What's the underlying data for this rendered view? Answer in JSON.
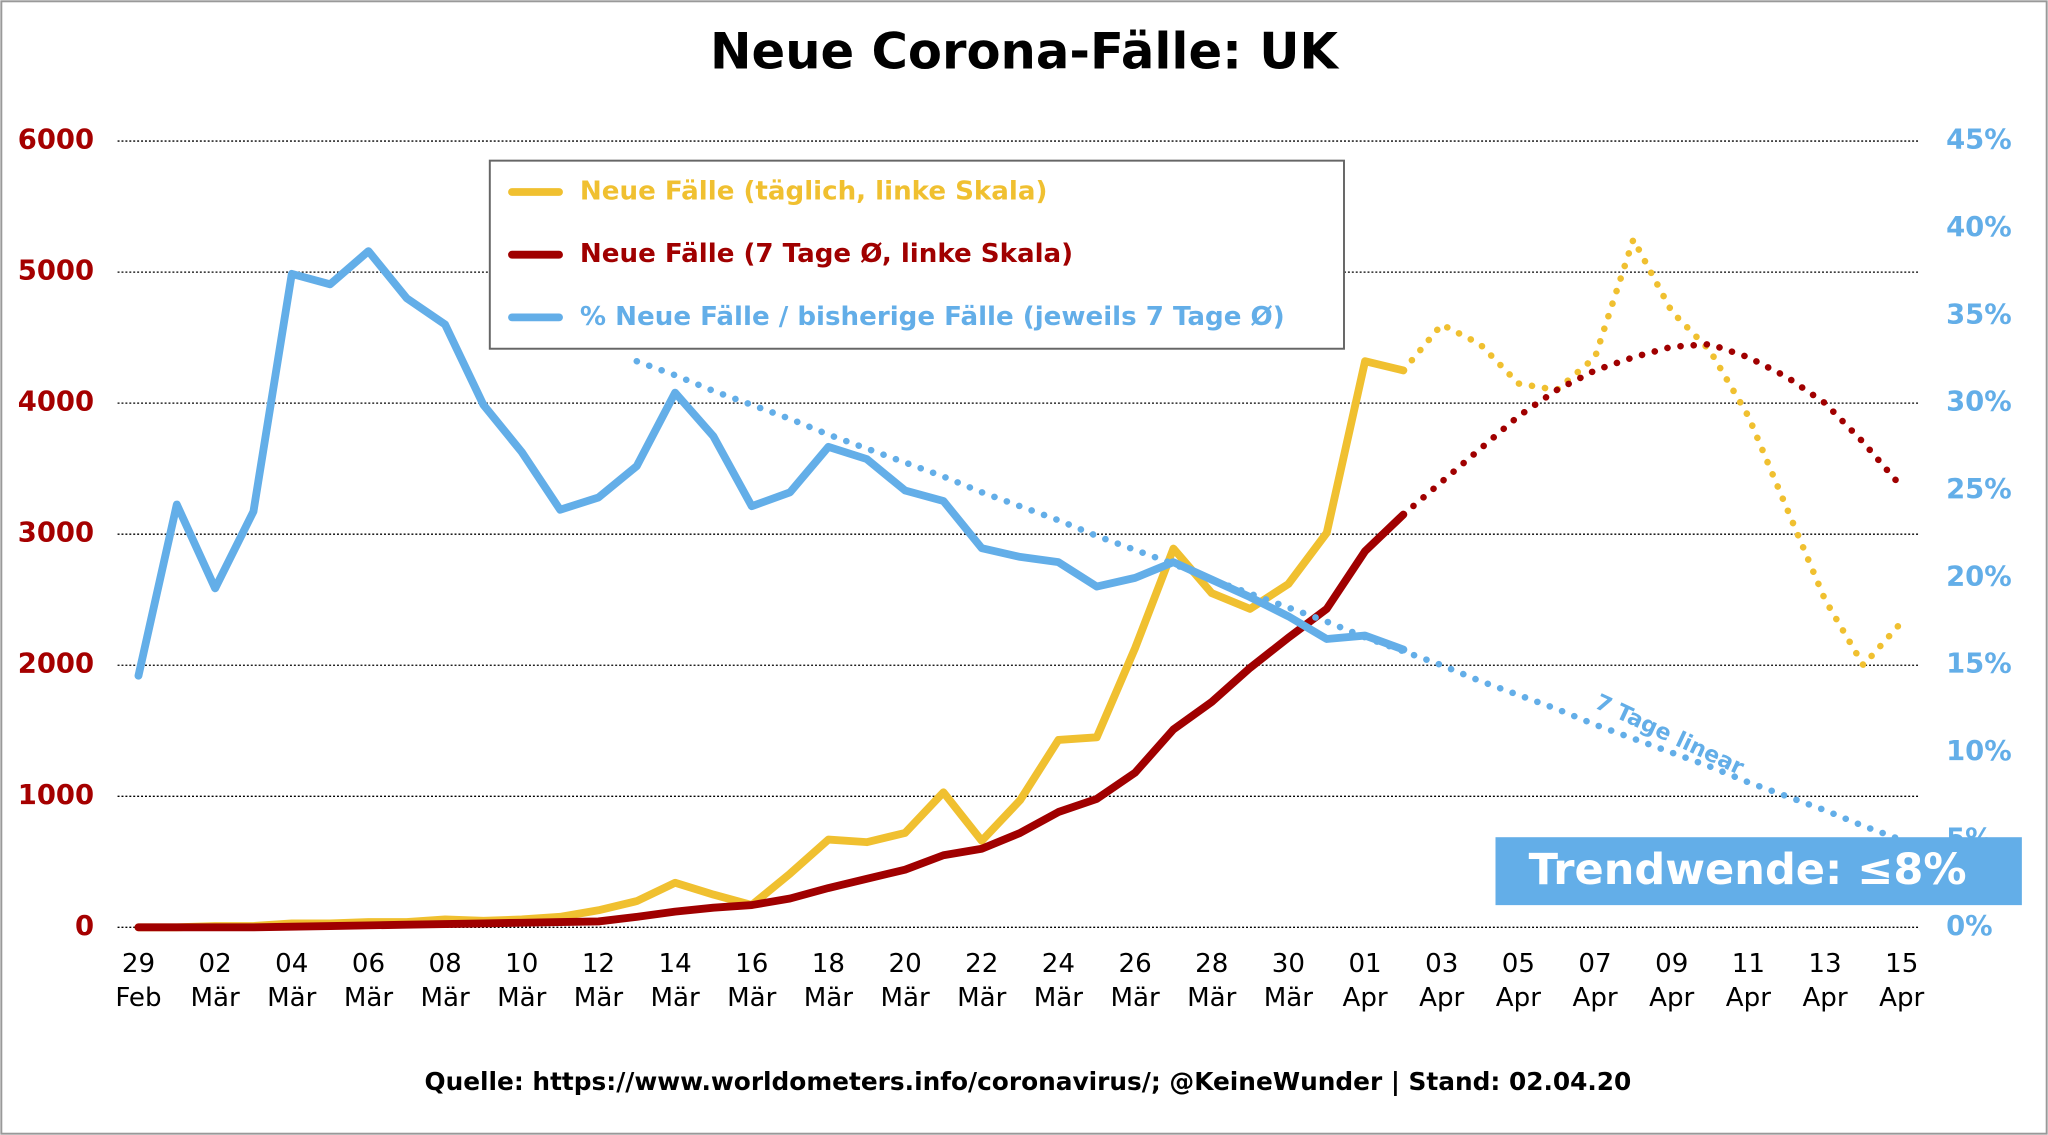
{
  "chart_data": {
    "type": "line",
    "title": "Neue Corona-Fälle: UK",
    "source": "Quelle: https://www.worldometers.info/coronavirus/; @KeineWunder    |     Stand: 02.04.20",
    "trend_label": "7 Tage linear",
    "callout": "Trendwende: ≤8%",
    "categories": [
      "29 Feb",
      null,
      "02 Mär",
      null,
      "04 Mär",
      null,
      "06 Mär",
      null,
      "08 Mär",
      null,
      "10 Mär",
      null,
      "12 Mär",
      null,
      "14 Mär",
      null,
      "16 Mär",
      null,
      "18 Mär",
      null,
      "20 Mär",
      null,
      "22 Mär",
      null,
      "24 Mär",
      null,
      "26 Mär",
      null,
      "28 Mär",
      null,
      "30 Mär",
      null,
      "01 Apr",
      null,
      "03 Apr",
      null,
      "05 Apr",
      null,
      "07 Apr",
      null,
      "09 Apr",
      null,
      "11 Apr",
      null,
      "13 Apr",
      null,
      "15 Apr"
    ],
    "ylim": [
      0,
      6000
    ],
    "yticks": [
      0,
      1000,
      2000,
      3000,
      4000,
      5000,
      6000
    ],
    "y2lim": [
      0,
      45
    ],
    "y2ticks": [
      {
        "value": 0,
        "label": "0%"
      },
      {
        "value": 5,
        "label": "5%"
      },
      {
        "value": 10,
        "label": "10%"
      },
      {
        "value": 15,
        "label": "15%"
      },
      {
        "value": 20,
        "label": "20%"
      },
      {
        "value": 25,
        "label": "25%"
      },
      {
        "value": 30,
        "label": "30%"
      },
      {
        "value": 35,
        "label": "35%"
      },
      {
        "value": 40,
        "label": "40%"
      },
      {
        "value": 45,
        "label": "45%"
      }
    ],
    "grid": true,
    "left_axis_color": "#a50000",
    "right_axis_color": "#63aee8",
    "series": [
      {
        "name": "Neue Fälle (täglich, linke Skala)",
        "color": "#f0c030",
        "values": [
          0,
          0,
          10,
          10,
          30,
          30,
          40,
          40,
          60,
          50,
          60,
          80,
          130,
          200,
          340,
          250,
          170,
          410,
          670,
          650,
          720,
          1030,
          660,
          970,
          1430,
          1450,
          2130,
          2890,
          2550,
          2430,
          2620,
          3010,
          4320,
          4250,
          null,
          null,
          null,
          null,
          null,
          null,
          null,
          null,
          null,
          null,
          null,
          null,
          null
        ],
        "forecast": [
          null,
          null,
          null,
          null,
          null,
          null,
          null,
          null,
          null,
          null,
          null,
          null,
          null,
          null,
          null,
          null,
          null,
          null,
          null,
          null,
          null,
          null,
          null,
          null,
          null,
          null,
          null,
          null,
          null,
          null,
          null,
          null,
          null,
          4250,
          4600,
          4450,
          4150,
          4100,
          4350,
          5250,
          4700,
          4400,
          3900,
          3200,
          2500,
          2000,
          2330
        ]
      },
      {
        "name": "Neue Fälle (7 Tage Ø, linke Skala)",
        "color": "#a00000",
        "values": [
          0,
          0,
          0,
          0,
          5,
          10,
          15,
          20,
          25,
          30,
          35,
          40,
          45,
          80,
          120,
          150,
          170,
          220,
          300,
          370,
          440,
          550,
          600,
          720,
          880,
          980,
          1180,
          1510,
          1720,
          1980,
          2210,
          2430,
          2870,
          3150,
          null,
          null,
          null,
          null,
          null,
          null,
          null,
          null,
          null,
          null,
          null,
          null,
          null
        ],
        "forecast": [
          null,
          null,
          null,
          null,
          null,
          null,
          null,
          null,
          null,
          null,
          null,
          null,
          null,
          null,
          null,
          null,
          null,
          null,
          null,
          null,
          null,
          null,
          null,
          null,
          null,
          null,
          null,
          null,
          null,
          null,
          null,
          null,
          null,
          3150,
          3400,
          3650,
          3900,
          4100,
          4250,
          4350,
          4430,
          4450,
          4350,
          4200,
          4000,
          3700,
          3360
        ]
      },
      {
        "name": "% Neue Fälle / bisherige Fälle (jeweils 7 Tage Ø)",
        "color": "#63aee8",
        "axis": "y2",
        "values": [
          14.4,
          24.2,
          19.4,
          23.8,
          37.4,
          36.8,
          38.7,
          36.0,
          34.5,
          29.9,
          27.2,
          23.9,
          24.6,
          26.4,
          30.6,
          28.1,
          24.1,
          24.9,
          27.5,
          26.8,
          25.0,
          24.4,
          21.7,
          21.2,
          20.9,
          19.5,
          20.0,
          20.9,
          19.9,
          18.9,
          17.8,
          16.5,
          16.7,
          15.9,
          null,
          null,
          null,
          null,
          null,
          null,
          null,
          null,
          null,
          null,
          null,
          null,
          null
        ],
        "trend": [
          null,
          null,
          null,
          null,
          null,
          null,
          null,
          null,
          null,
          null,
          null,
          null,
          null,
          32.4,
          31.6,
          30.7,
          29.9,
          29.1,
          28.2,
          27.4,
          26.6,
          25.8,
          24.9,
          24.1,
          23.3,
          22.4,
          21.6,
          20.8,
          19.9,
          19.1,
          18.3,
          17.5,
          16.6,
          15.8,
          15.0,
          14.1,
          13.3,
          12.5,
          11.6,
          10.8,
          10.0,
          9.2,
          8.3,
          7.5,
          6.7,
          5.8,
          5.0
        ]
      }
    ]
  }
}
